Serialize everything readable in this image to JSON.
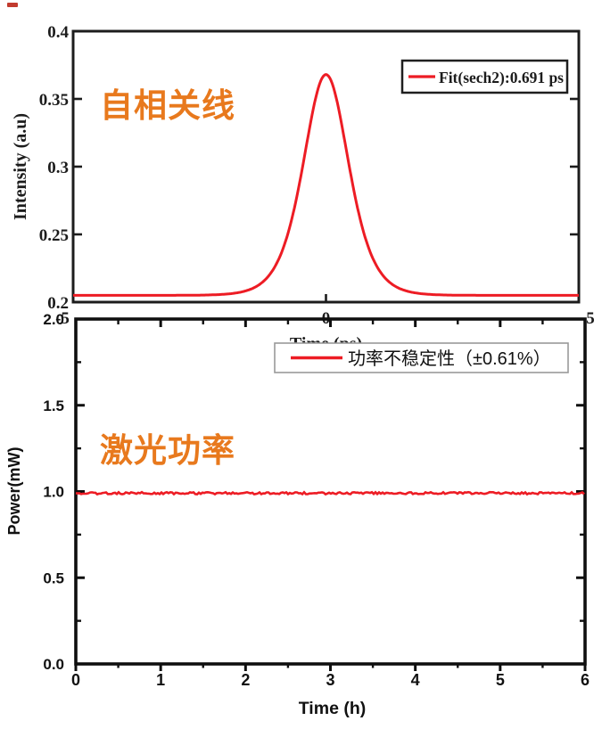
{
  "figure": {
    "background": "#ffffff",
    "accent_red": "#ed1c24",
    "accent_orange": "#e8791d",
    "axis_color": "#1c1c1c",
    "stray_mark_color": "#c23b2e",
    "annotation_top": "自相关线",
    "annotation_bottom": "激光功率"
  },
  "chart_data": [
    {
      "id": "autocorrelation-trace",
      "type": "line",
      "title": "",
      "xlabel": "Time (ps)",
      "ylabel": "Intensity (a.u)",
      "xlim": [
        -5,
        5
      ],
      "ylim": [
        0.2,
        0.4
      ],
      "xticks": [
        -5,
        0,
        5
      ],
      "xtick_labels": [
        "-5",
        "0",
        "5"
      ],
      "yticks": [
        0.2,
        0.25,
        0.3,
        0.35,
        0.4
      ],
      "ytick_labels": [
        "0.2",
        "0.25",
        "0.3",
        "0.35",
        "0.4"
      ],
      "grid": false,
      "legend": {
        "position": "top-right",
        "entries": [
          {
            "label": "Fit(sech2):0.691 ps",
            "color": "#ed1c24"
          }
        ]
      },
      "annotation": {
        "text": "自相关线",
        "color": "#e8791d"
      },
      "series": [
        {
          "name": "Fit(sech2):0.691 ps",
          "model": "sech2",
          "baseline": 0.205,
          "amplitude": 0.163,
          "center_ps": 0,
          "autocorrelation_fwhm_ps": 1.06,
          "fitted_pulse_width_ps": 0.691,
          "color": "#ed1c24"
        }
      ]
    },
    {
      "id": "laser-power-stability",
      "type": "line",
      "title": "",
      "xlabel": "Time (h)",
      "ylabel": "Power(mW)",
      "xlim": [
        0,
        6
      ],
      "ylim": [
        0.0,
        2.0
      ],
      "xticks": [
        0,
        1,
        2,
        3,
        4,
        5,
        6
      ],
      "xtick_labels": [
        "0",
        "1",
        "2",
        "3",
        "4",
        "5",
        "6"
      ],
      "x_minor_step": 0.5,
      "yticks": [
        0.0,
        0.5,
        1.0,
        1.5,
        2.0
      ],
      "ytick_labels": [
        "0.0",
        "0.5",
        "1.0",
        "1.5",
        "2.0"
      ],
      "y_minor_step": 0.25,
      "grid": false,
      "legend": {
        "position": "top-center-right",
        "entries": [
          {
            "label": "功率不稳定性（±0.61%）",
            "color": "#ed1c24"
          }
        ]
      },
      "annotation": {
        "text": "激光功率",
        "color": "#e8791d"
      },
      "series": [
        {
          "name": "功率不稳定性（±0.61%）",
          "model": "constant-with-noise",
          "mean_mW": 0.99,
          "instability_pct": 0.61,
          "color": "#ed1c24"
        }
      ]
    }
  ]
}
